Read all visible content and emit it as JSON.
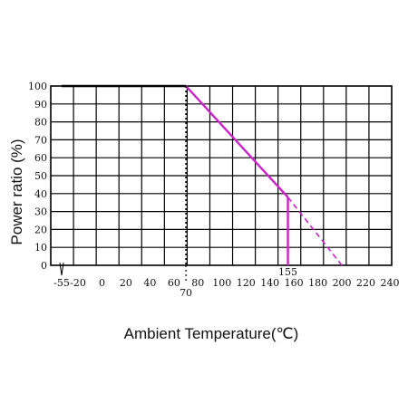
{
  "chart_data": {
    "type": "line",
    "title": "",
    "xlabel": "Ambient Temperature(℃)",
    "ylabel": "Power ratio (%)",
    "xlim": [
      -55,
      240
    ],
    "ylim": [
      0,
      100
    ],
    "grid": true,
    "x_ticks": [
      "-55",
      "-20",
      "0",
      "20",
      "40",
      "60",
      "80",
      "100",
      "120",
      "140",
      "160",
      "180",
      "200",
      "220",
      "240"
    ],
    "x_tick_values": [
      -55,
      -20,
      0,
      20,
      40,
      60,
      80,
      100,
      120,
      140,
      160,
      180,
      200,
      220,
      240
    ],
    "y_ticks": [
      "100",
      "90",
      "80",
      "70",
      "60",
      "50",
      "40",
      "30",
      "20",
      "10",
      "0"
    ],
    "y_tick_values": [
      100,
      90,
      80,
      70,
      60,
      50,
      40,
      30,
      20,
      10,
      0
    ],
    "series": [
      {
        "style": "solid",
        "color": "#000000",
        "x": [
          -55,
          70
        ],
        "y": [
          100,
          100
        ]
      },
      {
        "style": "solid",
        "color": "#cc22cc",
        "x": [
          70,
          155
        ],
        "y": [
          100,
          38
        ]
      },
      {
        "style": "solid",
        "color": "#cc22cc",
        "x": [
          155,
          155
        ],
        "y": [
          38,
          0
        ]
      },
      {
        "style": "dashed",
        "color": "#cc22cc",
        "x": [
          155,
          200
        ],
        "y": [
          38,
          0
        ]
      },
      {
        "style": "dotted",
        "color": "#000000",
        "x": [
          70,
          70
        ],
        "y": [
          100,
          0
        ]
      }
    ],
    "annotations": [
      {
        "text": "70",
        "x": 70
      },
      {
        "text": "155",
        "x": 155
      }
    ]
  }
}
